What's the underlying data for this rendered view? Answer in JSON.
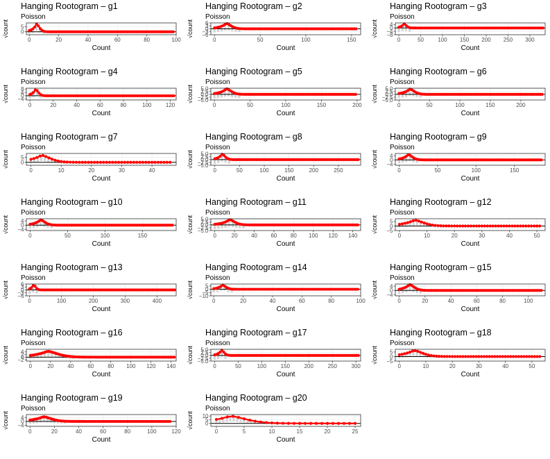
{
  "figure": {
    "title_prefix": "Hanging Rootogram – ",
    "subtitle": "Poisson",
    "xlabel": "Count",
    "ylabel": "√count",
    "colors": {
      "expected": "#ff0000",
      "observed_bar": "#d3d3d3",
      "zero_line": "#000000",
      "grid": "#ebebeb",
      "panel_border": "#333333"
    }
  },
  "chart_data": [
    {
      "type": "bar",
      "name": "g1",
      "title": "Hanging Rootogram – g1",
      "subtitle": "Poisson",
      "xlabel": "Count",
      "ylabel": "√count",
      "xlim": [
        -2,
        100
      ],
      "ylim": [
        -3,
        9
      ],
      "xticks": [
        0,
        20,
        40,
        60,
        80,
        100
      ],
      "yticks": [
        0,
        5
      ],
      "peak": {
        "x": 5,
        "y": 8.0
      },
      "width": 2.6,
      "x_range": [
        0,
        98
      ],
      "bar_depth": 2.5
    },
    {
      "type": "bar",
      "name": "g2",
      "title": "Hanging Rootogram – g2",
      "subtitle": "Poisson",
      "xlabel": "Count",
      "ylabel": "√count",
      "xlim": [
        -4,
        160
      ],
      "ylim": [
        -6,
        6
      ],
      "xticks": [
        0,
        50,
        100,
        150
      ],
      "yticks": [
        -6,
        -3,
        0,
        3,
        6
      ],
      "peak": {
        "x": 13,
        "y": 5.5
      },
      "width": 7,
      "x_range": [
        0,
        155
      ],
      "bar_depth": 4
    },
    {
      "type": "bar",
      "name": "g3",
      "title": "Hanging Rootogram – g3",
      "subtitle": "Poisson",
      "xlabel": "Count",
      "ylabel": "√count",
      "xlim": [
        -8,
        335
      ],
      "ylim": [
        -8,
        6
      ],
      "xticks": [
        0,
        50,
        100,
        150,
        200,
        250,
        300
      ],
      "yticks": [
        -8,
        -4,
        0,
        4
      ],
      "peak": {
        "x": 12,
        "y": 5.0
      },
      "width": 7,
      "x_range": [
        0,
        330
      ],
      "bar_depth": 5
    },
    {
      "type": "bar",
      "name": "g4",
      "title": "Hanging Rootogram – g4",
      "subtitle": "Poisson",
      "xlabel": "Count",
      "ylabel": "√count",
      "xlim": [
        -3,
        125
      ],
      "ylim": [
        -5,
        9
      ],
      "xticks": [
        0,
        20,
        40,
        60,
        80,
        100,
        120
      ],
      "yticks": [
        -4,
        0,
        4,
        8
      ],
      "peak": {
        "x": 5,
        "y": 7.8
      },
      "width": 3,
      "x_range": [
        0,
        123
      ],
      "bar_depth": 3.5
    },
    {
      "type": "bar",
      "name": "g5",
      "title": "Hanging Rootogram – g5",
      "subtitle": "Poisson",
      "xlabel": "Count",
      "ylabel": "√count",
      "xlim": [
        -5,
        205
      ],
      "ylim": [
        -5,
        5.5
      ],
      "xticks": [
        0,
        50,
        100,
        150,
        200
      ],
      "yticks": [
        -5.0,
        -2.5,
        0.0,
        2.5,
        5.0
      ],
      "peak": {
        "x": 17,
        "y": 5.0
      },
      "width": 9,
      "x_range": [
        0,
        198
      ],
      "bar_depth": 4
    },
    {
      "type": "bar",
      "name": "g6",
      "title": "Hanging Rootogram – g6",
      "subtitle": "Poisson",
      "xlabel": "Count",
      "ylabel": "√count",
      "xlim": [
        -6,
        240
      ],
      "ylim": [
        -5,
        5.5
      ],
      "xticks": [
        0,
        50,
        100,
        150,
        200
      ],
      "yticks": [
        -5.0,
        -2.5,
        0.0,
        2.5,
        5.0
      ],
      "peak": {
        "x": 18,
        "y": 4.8
      },
      "width": 10,
      "x_range": [
        0,
        235
      ],
      "bar_depth": 3.5
    },
    {
      "type": "bar",
      "name": "g7",
      "title": "Hanging Rootogram – g7",
      "subtitle": "Poisson",
      "xlabel": "Count",
      "ylabel": "√count",
      "xlim": [
        -1.5,
        48
      ],
      "ylim": [
        -3,
        9
      ],
      "xticks": [
        0,
        10,
        20,
        30,
        40
      ],
      "yticks": [
        0,
        5
      ],
      "peak": {
        "x": 3.5,
        "y": 7.2
      },
      "width": 4,
      "x_range": [
        0,
        46
      ],
      "bar_depth": 2
    },
    {
      "type": "bar",
      "name": "g8",
      "title": "Hanging Rootogram – g8",
      "subtitle": "Poisson",
      "xlabel": "Count",
      "ylabel": "√count",
      "xlim": [
        -8,
        295
      ],
      "ylim": [
        -5,
        5.5
      ],
      "xticks": [
        0,
        50,
        100,
        150,
        200,
        250
      ],
      "yticks": [
        -5.0,
        -2.5,
        0.0,
        2.5,
        5.0
      ],
      "peak": {
        "x": 15,
        "y": 5.0
      },
      "width": 8,
      "x_range": [
        0,
        290
      ],
      "bar_depth": 4
    },
    {
      "type": "bar",
      "name": "g9",
      "title": "Hanging Rootogram – g9",
      "subtitle": "Poisson",
      "xlabel": "Count",
      "ylabel": "√count",
      "xlim": [
        -5,
        190
      ],
      "ylim": [
        -5,
        6
      ],
      "xticks": [
        0,
        50,
        100,
        150
      ],
      "yticks": [
        -4,
        0,
        4
      ],
      "peak": {
        "x": 12,
        "y": 5.0
      },
      "width": 7,
      "x_range": [
        0,
        185
      ],
      "bar_depth": 3.5
    },
    {
      "type": "bar",
      "name": "g10",
      "title": "Hanging Rootogram – g10",
      "subtitle": "Poisson",
      "xlabel": "Count",
      "ylabel": "√count",
      "xlim": [
        -5,
        195
      ],
      "ylim": [
        -5,
        6
      ],
      "xticks": [
        0,
        50,
        100,
        150
      ],
      "yticks": [
        -4,
        0,
        4
      ],
      "peak": {
        "x": 14,
        "y": 5.0
      },
      "width": 8,
      "x_range": [
        0,
        190
      ],
      "bar_depth": 3.5
    },
    {
      "type": "bar",
      "name": "g11",
      "title": "Hanging Rootogram – g11",
      "subtitle": "Poisson",
      "xlabel": "Count",
      "ylabel": "√count",
      "xlim": [
        -4,
        148
      ],
      "ylim": [
        -5,
        5.5
      ],
      "xticks": [
        0,
        20,
        40,
        60,
        80,
        100,
        120,
        140
      ],
      "yticks": [
        -5.0,
        -2.5,
        0.0,
        2.5,
        5.0
      ],
      "peak": {
        "x": 15,
        "y": 4.8
      },
      "width": 7,
      "x_range": [
        0,
        145
      ],
      "bar_depth": 4
    },
    {
      "type": "bar",
      "name": "g12",
      "title": "Hanging Rootogram – g12",
      "subtitle": "Poisson",
      "xlabel": "Count",
      "ylabel": "√count",
      "xlim": [
        -1.5,
        53
      ],
      "ylim": [
        -5,
        8
      ],
      "xticks": [
        0,
        10,
        20,
        30,
        40,
        50
      ],
      "yticks": [
        -5,
        0,
        5
      ],
      "peak": {
        "x": 5.5,
        "y": 6.5
      },
      "width": 4.5,
      "x_range": [
        0,
        51
      ],
      "bar_depth": 2.5
    },
    {
      "type": "bar",
      "name": "g13",
      "title": "Hanging Rootogram – g13",
      "subtitle": "Poisson",
      "xlabel": "Count",
      "ylabel": "√count",
      "xlim": [
        -10,
        460
      ],
      "ylim": [
        -6,
        6
      ],
      "xticks": [
        0,
        100,
        200,
        300,
        400
      ],
      "yticks": [
        -6,
        -3,
        0,
        3,
        6
      ],
      "peak": {
        "x": 13,
        "y": 5.5
      },
      "width": 8,
      "x_range": [
        0,
        455
      ],
      "bar_depth": 4.5
    },
    {
      "type": "bar",
      "name": "g14",
      "title": "Hanging Rootogram – g14",
      "subtitle": "Poisson",
      "xlabel": "Count",
      "ylabel": "√count",
      "xlim": [
        -2,
        100
      ],
      "ylim": [
        -10,
        8
      ],
      "xticks": [
        0,
        20,
        40,
        60,
        80,
        100
      ],
      "yticks": [
        -10,
        -5,
        0,
        5
      ],
      "peak": {
        "x": 6,
        "y": 6.5
      },
      "width": 3,
      "x_range": [
        0,
        98
      ],
      "bar_depth": 5
    },
    {
      "type": "bar",
      "name": "g15",
      "title": "Hanging Rootogram – g15",
      "subtitle": "Poisson",
      "xlabel": "Count",
      "ylabel": "√count",
      "xlim": [
        -3,
        113
      ],
      "ylim": [
        -5,
        6
      ],
      "xticks": [
        0,
        20,
        40,
        60,
        80,
        100
      ],
      "yticks": [
        -4,
        0,
        4
      ],
      "peak": {
        "x": 8,
        "y": 5.5
      },
      "width": 5,
      "x_range": [
        0,
        110
      ],
      "bar_depth": 3.5
    },
    {
      "type": "bar",
      "name": "g16",
      "title": "Hanging Rootogram – g16",
      "subtitle": "Poisson",
      "xlabel": "Count",
      "ylabel": "√count",
      "xlim": [
        -4,
        145
      ],
      "ylim": [
        -3,
        6
      ],
      "xticks": [
        0,
        20,
        40,
        60,
        80,
        100,
        120,
        140
      ],
      "yticks": [
        -2,
        0,
        2,
        4
      ],
      "peak": {
        "x": 17,
        "y": 4.5
      },
      "width": 14,
      "x_range": [
        0,
        143
      ],
      "bar_depth": 2
    },
    {
      "type": "bar",
      "name": "g17",
      "title": "Hanging Rootogram – g17",
      "subtitle": "Poisson",
      "xlabel": "Count",
      "ylabel": "√count",
      "xlim": [
        -8,
        310
      ],
      "ylim": [
        -5,
        5.5
      ],
      "xticks": [
        0,
        50,
        100,
        150,
        200,
        250,
        300
      ],
      "yticks": [
        -5.0,
        -2.5,
        0.0,
        2.5,
        5.0
      ],
      "peak": {
        "x": 15,
        "y": 4.8
      },
      "width": 7,
      "x_range": [
        0,
        305
      ],
      "bar_depth": 4
    },
    {
      "type": "bar",
      "name": "g18",
      "title": "Hanging Rootogram – g18",
      "subtitle": "Poisson",
      "xlabel": "Count",
      "ylabel": "√count",
      "xlim": [
        -1.5,
        55
      ],
      "ylim": [
        -5,
        8
      ],
      "xticks": [
        0,
        10,
        20,
        30,
        40,
        50
      ],
      "yticks": [
        -5,
        0,
        5
      ],
      "peak": {
        "x": 5.5,
        "y": 6.8
      },
      "width": 4.5,
      "x_range": [
        0,
        53
      ],
      "bar_depth": 2.5
    },
    {
      "type": "bar",
      "name": "g19",
      "title": "Hanging Rootogram – g19",
      "subtitle": "Poisson",
      "xlabel": "Count",
      "ylabel": "√count",
      "xlim": [
        -3,
        120
      ],
      "ylim": [
        -5,
        7
      ],
      "xticks": [
        0,
        20,
        40,
        60,
        80,
        100,
        120
      ],
      "yticks": [
        -4,
        0,
        4
      ],
      "peak": {
        "x": 11,
        "y": 4.8
      },
      "width": 9,
      "x_range": [
        0,
        115
      ],
      "bar_depth": 3
    },
    {
      "type": "bar",
      "name": "g20",
      "title": "Hanging Rootogram – g20",
      "subtitle": "Poisson",
      "xlabel": "Count",
      "ylabel": "√count",
      "xlim": [
        -1,
        26
      ],
      "ylim": [
        -4,
        12
      ],
      "xticks": [
        0,
        5,
        10,
        15,
        20,
        25
      ],
      "yticks": [
        0,
        5,
        10
      ],
      "peak": {
        "x": 2.5,
        "y": 10
      },
      "width": 4,
      "x_range": [
        0,
        25
      ],
      "bar_depth": 2
    }
  ]
}
